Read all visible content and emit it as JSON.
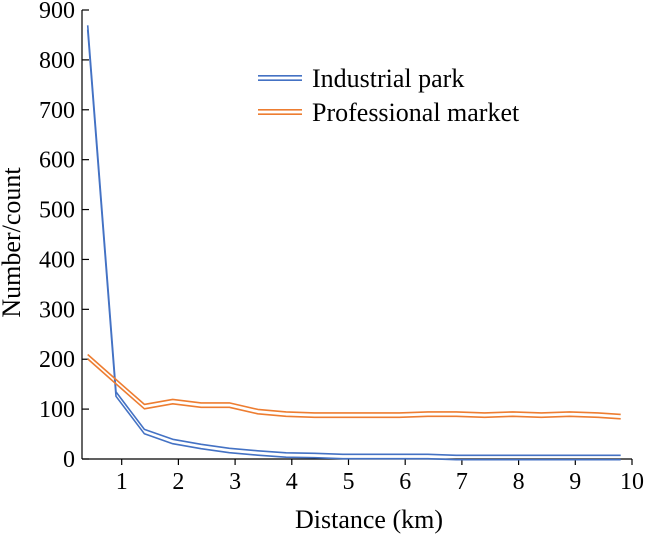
{
  "chart_data": {
    "type": "line",
    "title": "",
    "xlabel": "Distance (km)",
    "ylabel": "Number/count",
    "xlim": [
      0.3,
      10
    ],
    "ylim": [
      0,
      900
    ],
    "xticks": [
      1,
      2,
      3,
      4,
      5,
      6,
      7,
      8,
      9,
      10
    ],
    "yticks": [
      0,
      100,
      200,
      300,
      400,
      500,
      600,
      700,
      800,
      900
    ],
    "xtick_labels": [
      "1",
      "2",
      "3",
      "4",
      "5",
      "6",
      "7",
      "8",
      "9",
      "10"
    ],
    "ytick_labels": [
      "0",
      "100",
      "200",
      "300",
      "400",
      "500",
      "600",
      "700",
      "800",
      "900"
    ],
    "grid": false,
    "legend_position": "top-right",
    "series": [
      {
        "name": "Industrial park",
        "color": "#4472C4",
        "x": [
          0.4,
          0.9,
          1.4,
          1.9,
          2.4,
          2.9,
          3.4,
          3.9,
          4.4,
          4.9,
          5.4,
          5.9,
          6.4,
          6.9,
          7.4,
          7.9,
          8.4,
          8.9,
          9.4,
          9.8
        ],
        "y": [
          865,
          130,
          55,
          35,
          25,
          17,
          12,
          8,
          7,
          5,
          5,
          5,
          5,
          3,
          3,
          3,
          3,
          3,
          3,
          3
        ]
      },
      {
        "name": "Professional market",
        "color": "#ED7D31",
        "x": [
          0.4,
          0.9,
          1.4,
          1.9,
          2.4,
          2.9,
          3.4,
          3.9,
          4.4,
          4.9,
          5.4,
          5.9,
          6.4,
          6.9,
          7.4,
          7.9,
          8.4,
          8.9,
          9.4,
          9.8
        ],
        "y": [
          205,
          155,
          105,
          115,
          108,
          108,
          95,
          90,
          88,
          88,
          88,
          88,
          90,
          90,
          88,
          90,
          88,
          90,
          88,
          85
        ]
      }
    ]
  }
}
